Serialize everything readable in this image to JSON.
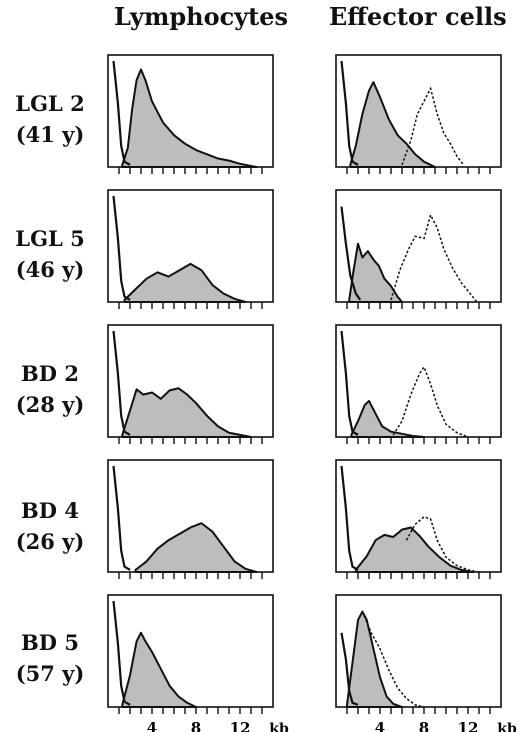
{
  "columns": [
    "Lymphocytes",
    "Effector cells"
  ],
  "rows": [
    {
      "name": "LGL 2",
      "age": "(41 y)"
    },
    {
      "name": "LGL 5",
      "age": "(46 y)"
    },
    {
      "name": "BD 2",
      "age": "(28 y)"
    },
    {
      "name": "BD 4",
      "age": "(26 y)"
    },
    {
      "name": "BD 5",
      "age": "(57 y)"
    }
  ],
  "chart_data": {
    "type": "area",
    "xlabel": "kb",
    "xlim": [
      0,
      15
    ],
    "xticks": [
      4,
      8,
      12
    ],
    "fill_color": "#bdbdbd",
    "line_color": "#111111",
    "panels": [
      {
        "row": "LGL 2",
        "column": "Lymphocytes",
        "marker": [
          [
            0.5,
            1.0
          ],
          [
            0.9,
            0.6
          ],
          [
            1.2,
            0.2
          ],
          [
            1.5,
            0.05
          ],
          [
            2.0,
            0.02
          ]
        ],
        "filled": [
          [
            1.3,
            0.02
          ],
          [
            1.8,
            0.18
          ],
          [
            2.2,
            0.55
          ],
          [
            2.6,
            0.82
          ],
          [
            3.0,
            0.92
          ],
          [
            3.4,
            0.82
          ],
          [
            4.0,
            0.62
          ],
          [
            5.0,
            0.42
          ],
          [
            6.0,
            0.3
          ],
          [
            7.0,
            0.22
          ],
          [
            8.0,
            0.16
          ],
          [
            9.0,
            0.12
          ],
          [
            10.0,
            0.08
          ],
          [
            11.0,
            0.06
          ],
          [
            12.0,
            0.03
          ],
          [
            13.5,
            0.0
          ]
        ]
      },
      {
        "row": "LGL 2",
        "column": "Effector cells",
        "marker": [
          [
            0.5,
            1.0
          ],
          [
            0.9,
            0.6
          ],
          [
            1.2,
            0.2
          ],
          [
            1.5,
            0.05
          ],
          [
            2.0,
            0.02
          ]
        ],
        "filled": [
          [
            1.3,
            0.02
          ],
          [
            1.8,
            0.2
          ],
          [
            2.4,
            0.5
          ],
          [
            3.0,
            0.72
          ],
          [
            3.4,
            0.8
          ],
          [
            4.0,
            0.66
          ],
          [
            4.8,
            0.45
          ],
          [
            5.6,
            0.3
          ],
          [
            6.4,
            0.22
          ],
          [
            7.2,
            0.12
          ],
          [
            8.0,
            0.05
          ],
          [
            9.0,
            0.0
          ]
        ],
        "dotted": [
          [
            6.0,
            0.02
          ],
          [
            6.8,
            0.25
          ],
          [
            7.4,
            0.5
          ],
          [
            8.0,
            0.62
          ],
          [
            8.6,
            0.74
          ],
          [
            9.2,
            0.5
          ],
          [
            9.8,
            0.32
          ],
          [
            10.4,
            0.22
          ],
          [
            11.0,
            0.1
          ],
          [
            11.6,
            0.02
          ]
        ]
      },
      {
        "row": "LGL 5",
        "column": "Lymphocytes",
        "marker": [
          [
            0.5,
            1.0
          ],
          [
            0.9,
            0.6
          ],
          [
            1.2,
            0.2
          ],
          [
            1.5,
            0.05
          ],
          [
            2.0,
            0.02
          ]
        ],
        "filled": [
          [
            1.5,
            0.02
          ],
          [
            2.5,
            0.12
          ],
          [
            3.5,
            0.22
          ],
          [
            4.5,
            0.28
          ],
          [
            5.5,
            0.24
          ],
          [
            6.5,
            0.3
          ],
          [
            7.5,
            0.36
          ],
          [
            8.5,
            0.3
          ],
          [
            9.5,
            0.16
          ],
          [
            10.5,
            0.08
          ],
          [
            11.5,
            0.03
          ],
          [
            12.5,
            0.0
          ]
        ]
      },
      {
        "row": "LGL 5",
        "column": "Effector cells",
        "marker": [
          [
            0.5,
            0.9
          ],
          [
            0.9,
            0.55
          ],
          [
            1.3,
            0.25
          ],
          [
            1.8,
            0.08
          ],
          [
            2.2,
            0.02
          ]
        ],
        "filled": [
          [
            1.2,
            0.02
          ],
          [
            1.6,
            0.3
          ],
          [
            2.0,
            0.55
          ],
          [
            2.4,
            0.42
          ],
          [
            2.9,
            0.48
          ],
          [
            3.4,
            0.4
          ],
          [
            3.9,
            0.34
          ],
          [
            4.4,
            0.22
          ],
          [
            5.0,
            0.15
          ],
          [
            5.6,
            0.05
          ],
          [
            6.0,
            0.0
          ]
        ],
        "dotted": [
          [
            5.0,
            0.02
          ],
          [
            5.8,
            0.3
          ],
          [
            6.6,
            0.5
          ],
          [
            7.2,
            0.62
          ],
          [
            8.0,
            0.6
          ],
          [
            8.6,
            0.82
          ],
          [
            9.2,
            0.7
          ],
          [
            9.8,
            0.5
          ],
          [
            10.6,
            0.32
          ],
          [
            11.4,
            0.18
          ],
          [
            12.2,
            0.08
          ],
          [
            12.8,
            0.0
          ]
        ]
      },
      {
        "row": "BD 2",
        "column": "Lymphocytes",
        "marker": [
          [
            0.5,
            1.0
          ],
          [
            0.9,
            0.6
          ],
          [
            1.2,
            0.2
          ],
          [
            1.5,
            0.05
          ],
          [
            2.0,
            0.02
          ]
        ],
        "filled": [
          [
            1.3,
            0.02
          ],
          [
            2.0,
            0.25
          ],
          [
            2.6,
            0.45
          ],
          [
            3.2,
            0.4
          ],
          [
            4.0,
            0.42
          ],
          [
            4.8,
            0.36
          ],
          [
            5.6,
            0.44
          ],
          [
            6.4,
            0.46
          ],
          [
            7.2,
            0.4
          ],
          [
            8.0,
            0.32
          ],
          [
            9.0,
            0.2
          ],
          [
            10.0,
            0.1
          ],
          [
            11.0,
            0.04
          ],
          [
            12.0,
            0.02
          ],
          [
            13.0,
            0.0
          ]
        ]
      },
      {
        "row": "BD 2",
        "column": "Effector cells",
        "marker": [
          [
            0.5,
            1.0
          ],
          [
            0.9,
            0.6
          ],
          [
            1.2,
            0.2
          ],
          [
            1.5,
            0.05
          ],
          [
            2.0,
            0.02
          ]
        ],
        "filled": [
          [
            1.4,
            0.02
          ],
          [
            2.0,
            0.15
          ],
          [
            2.6,
            0.3
          ],
          [
            3.0,
            0.34
          ],
          [
            3.6,
            0.22
          ],
          [
            4.2,
            0.1
          ],
          [
            5.0,
            0.05
          ],
          [
            6.0,
            0.03
          ],
          [
            7.0,
            0.01
          ],
          [
            8.0,
            0.0
          ]
        ],
        "dotted": [
          [
            5.2,
            0.02
          ],
          [
            6.0,
            0.15
          ],
          [
            6.8,
            0.4
          ],
          [
            7.6,
            0.6
          ],
          [
            8.0,
            0.66
          ],
          [
            8.6,
            0.5
          ],
          [
            9.2,
            0.3
          ],
          [
            10.0,
            0.12
          ],
          [
            11.0,
            0.04
          ],
          [
            12.0,
            0.0
          ]
        ]
      },
      {
        "row": "BD 4",
        "column": "Lymphocytes",
        "marker": [
          [
            0.5,
            1.0
          ],
          [
            0.9,
            0.6
          ],
          [
            1.2,
            0.2
          ],
          [
            1.5,
            0.05
          ],
          [
            2.0,
            0.02
          ]
        ],
        "filled": [
          [
            2.5,
            0.02
          ],
          [
            3.5,
            0.1
          ],
          [
            4.5,
            0.22
          ],
          [
            5.5,
            0.3
          ],
          [
            6.5,
            0.36
          ],
          [
            7.5,
            0.42
          ],
          [
            8.5,
            0.46
          ],
          [
            9.5,
            0.38
          ],
          [
            10.5,
            0.24
          ],
          [
            11.5,
            0.1
          ],
          [
            12.5,
            0.03
          ],
          [
            13.5,
            0.0
          ]
        ]
      },
      {
        "row": "BD 4",
        "column": "Effector cells",
        "marker": [
          [
            0.5,
            1.0
          ],
          [
            0.9,
            0.6
          ],
          [
            1.2,
            0.2
          ],
          [
            1.5,
            0.05
          ],
          [
            2.0,
            0.02
          ]
        ],
        "filled": [
          [
            1.8,
            0.02
          ],
          [
            2.8,
            0.15
          ],
          [
            3.6,
            0.3
          ],
          [
            4.4,
            0.35
          ],
          [
            5.2,
            0.33
          ],
          [
            6.0,
            0.4
          ],
          [
            6.8,
            0.42
          ],
          [
            7.6,
            0.34
          ],
          [
            8.4,
            0.24
          ],
          [
            9.4,
            0.14
          ],
          [
            10.4,
            0.06
          ],
          [
            11.4,
            0.02
          ],
          [
            12.4,
            0.0
          ]
        ],
        "dotted": [
          [
            6.4,
            0.3
          ],
          [
            7.2,
            0.45
          ],
          [
            8.0,
            0.52
          ],
          [
            8.6,
            0.5
          ],
          [
            9.2,
            0.3
          ],
          [
            10.0,
            0.14
          ],
          [
            11.0,
            0.06
          ],
          [
            12.0,
            0.02
          ],
          [
            13.0,
            0.0
          ]
        ]
      },
      {
        "row": "BD 5",
        "column": "Lymphocytes",
        "marker": [
          [
            0.5,
            1.0
          ],
          [
            0.9,
            0.6
          ],
          [
            1.2,
            0.2
          ],
          [
            1.5,
            0.05
          ],
          [
            2.0,
            0.02
          ]
        ],
        "filled": [
          [
            1.3,
            0.02
          ],
          [
            2.0,
            0.3
          ],
          [
            2.6,
            0.62
          ],
          [
            3.0,
            0.7
          ],
          [
            3.4,
            0.62
          ],
          [
            4.0,
            0.52
          ],
          [
            4.8,
            0.36
          ],
          [
            5.6,
            0.2
          ],
          [
            6.4,
            0.1
          ],
          [
            7.2,
            0.04
          ],
          [
            8.0,
            0.0
          ]
        ]
      },
      {
        "row": "BD 5",
        "column": "Effector cells",
        "marker": [
          [
            0.5,
            0.7
          ],
          [
            0.9,
            0.45
          ],
          [
            1.2,
            0.15
          ],
          [
            1.5,
            0.04
          ],
          [
            2.0,
            0.02
          ]
        ],
        "filled": [
          [
            1.0,
            0.02
          ],
          [
            1.6,
            0.5
          ],
          [
            2.0,
            0.82
          ],
          [
            2.4,
            0.9
          ],
          [
            2.8,
            0.82
          ],
          [
            3.4,
            0.55
          ],
          [
            4.0,
            0.28
          ],
          [
            4.6,
            0.1
          ],
          [
            5.2,
            0.03
          ],
          [
            6.0,
            0.0
          ]
        ],
        "dotted": [
          [
            2.4,
            0.9
          ],
          [
            3.2,
            0.7
          ],
          [
            4.0,
            0.55
          ],
          [
            4.8,
            0.35
          ],
          [
            5.6,
            0.18
          ],
          [
            6.4,
            0.08
          ],
          [
            7.2,
            0.02
          ],
          [
            8.0,
            0.0
          ]
        ]
      }
    ]
  }
}
